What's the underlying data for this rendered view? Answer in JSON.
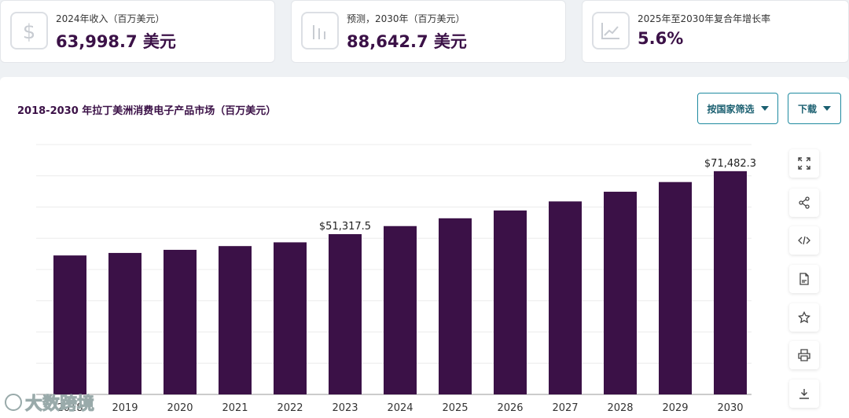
{
  "kpis": [
    {
      "label": "2024年收入（百万美元）",
      "value": "63,998.7 美元",
      "icon": "dollar-icon"
    },
    {
      "label": "预测，2030年（百万美元）",
      "value": "88,642.7 美元",
      "icon": "bar-chart-icon"
    },
    {
      "label": "2025年至2030年复合年增长率",
      "value": "5.6%",
      "icon": "line-chart-icon"
    }
  ],
  "toolbar": {
    "filter_label": "按国家筛选",
    "download_label": "下载"
  },
  "side_tools": [
    "expand-icon",
    "share-icon",
    "embed-icon",
    "file-icon",
    "star-icon",
    "print-icon",
    "download-icon"
  ],
  "watermark": {
    "text": "大数跨境"
  },
  "colors": {
    "bar": "#3b1147",
    "accent": "#1f8aa0"
  },
  "chart_data": {
    "type": "bar",
    "title": "2018-2030 年拉丁美洲消费电子产品市场（百万美元）",
    "categories": [
      "2018",
      "2019",
      "2020",
      "2021",
      "2022",
      "2023",
      "2024",
      "2025",
      "2026",
      "2027",
      "2028",
      "2029",
      "2030"
    ],
    "values": [
      44500,
      45300,
      46300,
      47500,
      48700,
      51317.5,
      53900,
      56400,
      58900,
      61800,
      64900,
      68000,
      71482.3
    ],
    "data_labels": {
      "2023": "$51,317.5",
      "2030": "$71,482.3"
    },
    "ylim": [
      0,
      80000
    ],
    "grid": true,
    "xlabel": "",
    "ylabel": ""
  }
}
